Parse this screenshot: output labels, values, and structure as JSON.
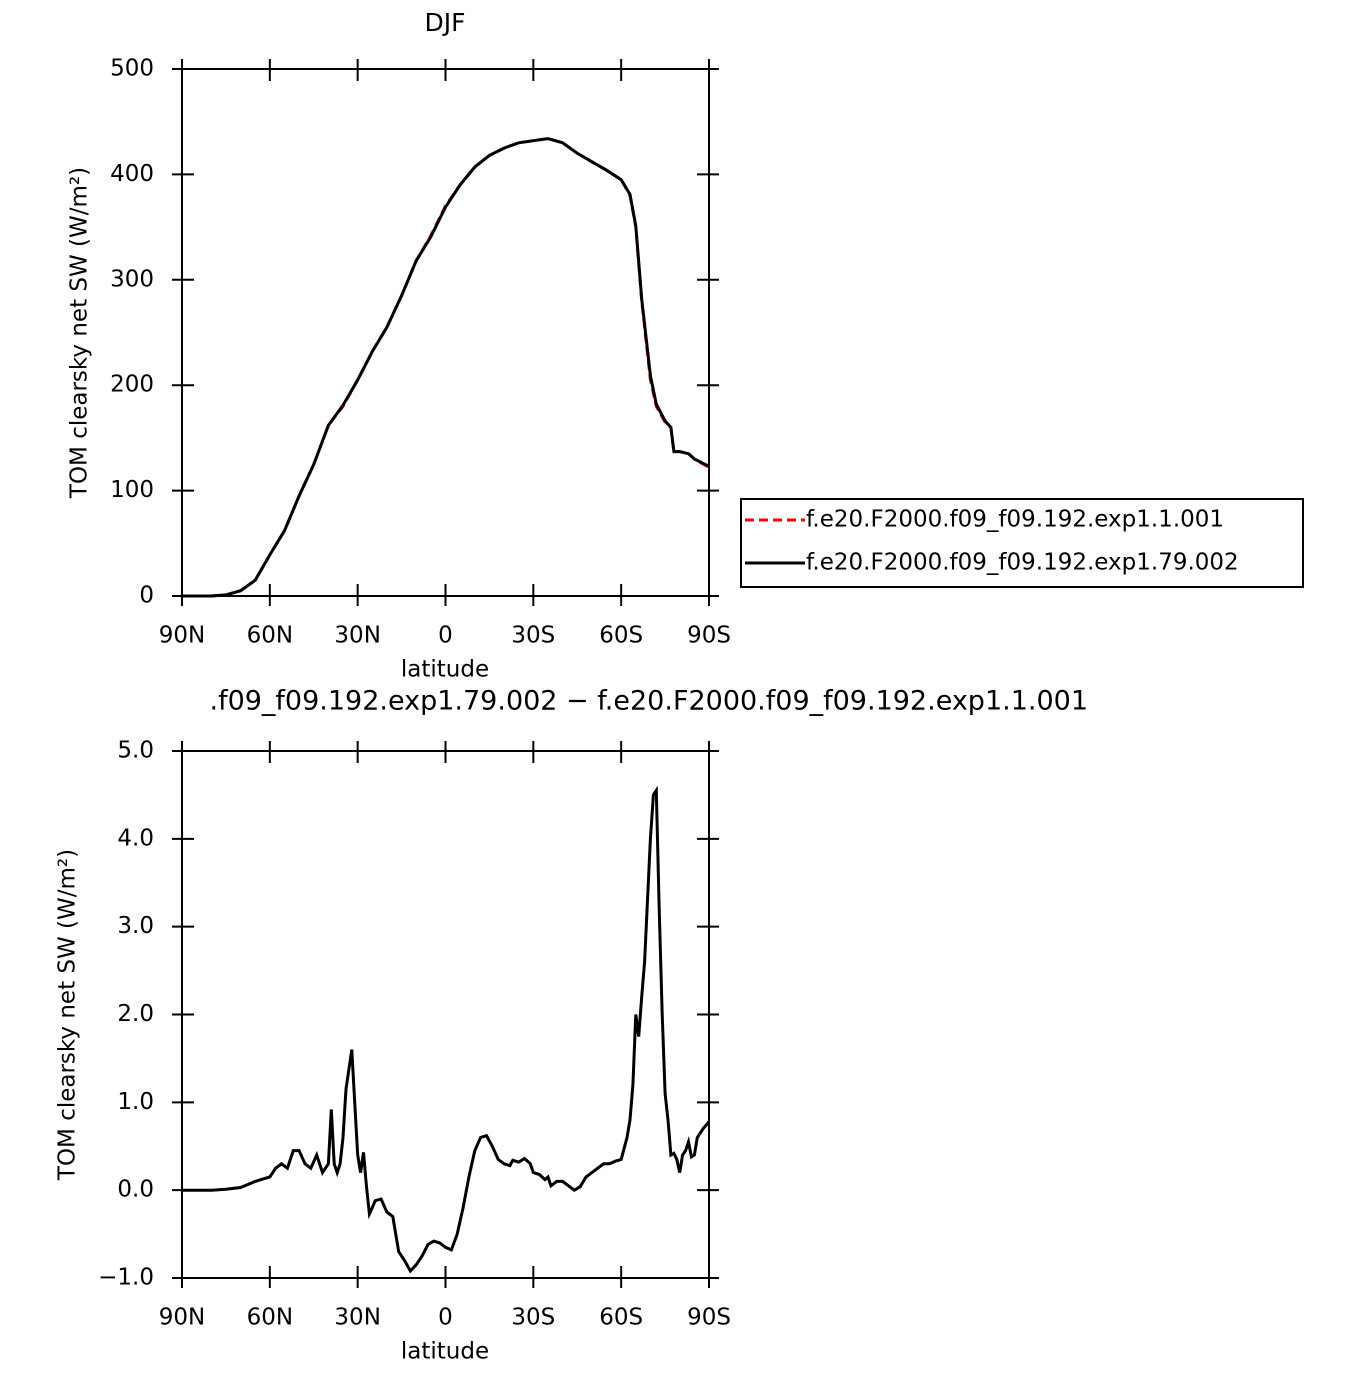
{
  "chart_data": [
    {
      "type": "line",
      "title": "DJF",
      "xlabel": "latitude",
      "ylabel": "TOM clearsky net SW (W/m²)",
      "x": [
        90,
        85,
        80,
        75,
        70,
        65,
        60,
        55,
        50,
        45,
        40,
        35,
        30,
        25,
        20,
        15,
        10,
        5,
        0,
        -5,
        -10,
        -15,
        -20,
        -25,
        -30,
        -35,
        -40,
        -45,
        -50,
        -55,
        -60,
        -63,
        -65,
        -67,
        -70,
        -72,
        -75,
        -77,
        -78,
        -80,
        -83,
        -85,
        -90
      ],
      "xlim": [
        90,
        -90
      ],
      "xticks": [
        {
          "value": 90,
          "label": "90N"
        },
        {
          "value": 60,
          "label": "60N"
        },
        {
          "value": 30,
          "label": "30N"
        },
        0,
        {
          "value": -30,
          "label": "30S"
        },
        {
          "value": -60,
          "label": "60S"
        },
        {
          "value": -90,
          "label": "90S"
        }
      ],
      "ylim": [
        0,
        500
      ],
      "yticks": [
        0,
        100,
        200,
        300,
        400,
        500
      ],
      "legend": "right",
      "series": [
        {
          "name": "f.e20.F2000.f09_f09.192.exp1.1.001",
          "color": "#ff0000",
          "dash": true,
          "values": [
            0,
            0,
            0,
            1,
            5,
            15,
            39,
            62,
            95,
            125,
            162,
            180,
            205,
            232,
            255,
            285,
            318,
            342,
            370,
            390,
            407,
            418,
            425,
            430,
            432,
            434,
            430,
            420,
            412,
            404,
            395,
            380,
            350,
            280,
            205,
            180,
            165,
            160,
            137,
            137,
            135,
            130,
            122
          ]
        },
        {
          "name": "f.e20.F2000.f09_f09.192.exp1.79.002",
          "color": "#000000",
          "dash": false,
          "values": [
            0,
            0,
            0,
            1,
            5,
            15,
            39,
            62,
            95,
            125,
            162,
            181,
            205,
            232,
            255,
            285,
            318,
            341,
            369,
            390,
            407,
            418,
            425,
            430,
            432,
            434,
            430,
            420,
            412,
            404,
            395,
            381,
            351,
            282,
            209,
            182,
            166,
            160,
            137,
            137,
            135,
            130,
            123
          ]
        }
      ]
    },
    {
      "type": "line",
      "title": ".f09_f09.192.exp1.79.002 − f.e20.F2000.f09_f09.192.exp1.1.001",
      "xlabel": "latitude",
      "ylabel": "TOM clearsky net SW (W/m²)",
      "x": [
        90,
        85,
        80,
        75,
        70,
        65,
        62,
        60,
        58,
        56,
        54,
        52,
        50,
        48,
        46,
        44,
        42,
        40,
        39,
        38,
        37,
        36,
        35,
        34,
        32,
        31,
        30,
        29,
        28,
        27,
        26,
        25,
        24,
        22,
        20,
        18,
        16,
        14,
        12,
        10,
        8,
        6,
        4,
        2,
        0,
        -2,
        -4,
        -6,
        -8,
        -10,
        -12,
        -14,
        -16,
        -18,
        -20,
        -22,
        -23,
        -25,
        -27,
        -29,
        -30,
        -32,
        -34,
        -35,
        -36,
        -38,
        -40,
        -42,
        -44,
        -46,
        -48,
        -50,
        -52,
        -54,
        -56,
        -58,
        -60,
        -62,
        -63,
        -64,
        -65,
        -66,
        -67,
        -68,
        -69,
        -70,
        -71,
        -72,
        -73,
        -74,
        -75,
        -76,
        -77,
        -78,
        -79,
        -80,
        -81,
        -82,
        -83,
        -84,
        -85,
        -86,
        -88,
        -90
      ],
      "xlim": [
        90,
        -90
      ],
      "xticks": [
        {
          "value": 90,
          "label": "90N"
        },
        {
          "value": 60,
          "label": "60N"
        },
        {
          "value": 30,
          "label": "30N"
        },
        0,
        {
          "value": -30,
          "label": "30S"
        },
        {
          "value": -60,
          "label": "60S"
        },
        {
          "value": -90,
          "label": "90S"
        }
      ],
      "ylim": [
        -1,
        5
      ],
      "yticks": [
        {
          "value": -1,
          "label": "−1.0"
        },
        {
          "value": 0,
          "label": "0.0"
        },
        {
          "value": 1,
          "label": "1.0"
        },
        {
          "value": 2,
          "label": "2.0"
        },
        {
          "value": 3,
          "label": "3.0"
        },
        {
          "value": 4,
          "label": "4.0"
        },
        {
          "value": 5,
          "label": "5.0"
        }
      ],
      "series": [
        {
          "color": "#000000",
          "dash": false,
          "values": [
            0,
            0,
            0,
            0.01,
            0.03,
            0.1,
            0.13,
            0.15,
            0.25,
            0.3,
            0.25,
            0.45,
            0.45,
            0.3,
            0.25,
            0.4,
            0.2,
            0.3,
            0.92,
            0.3,
            0.2,
            0.3,
            0.6,
            1.15,
            1.6,
            1.0,
            0.4,
            0.2,
            0.43,
            0.05,
            -0.27,
            -0.2,
            -0.12,
            -0.1,
            -0.25,
            -0.3,
            -0.7,
            -0.8,
            -0.92,
            -0.85,
            -0.75,
            -0.62,
            -0.58,
            -0.6,
            -0.65,
            -0.68,
            -0.5,
            -0.2,
            0.15,
            0.45,
            0.6,
            0.62,
            0.5,
            0.35,
            0.3,
            0.28,
            0.34,
            0.32,
            0.36,
            0.3,
            0.2,
            0.18,
            0.12,
            0.15,
            0.05,
            0.1,
            0.1,
            0.05,
            0,
            0.04,
            0.15,
            0.2,
            0.25,
            0.3,
            0.3,
            0.33,
            0.35,
            0.6,
            0.8,
            1.2,
            2.0,
            1.75,
            2.2,
            2.6,
            3.3,
            4.0,
            4.5,
            4.55,
            3.2,
            2.0,
            1.1,
            0.8,
            0.4,
            0.42,
            0.35,
            0.2,
            0.4,
            0.45,
            0.55,
            0.38,
            0.4,
            0.6,
            0.7,
            0.78
          ]
        }
      ]
    }
  ]
}
